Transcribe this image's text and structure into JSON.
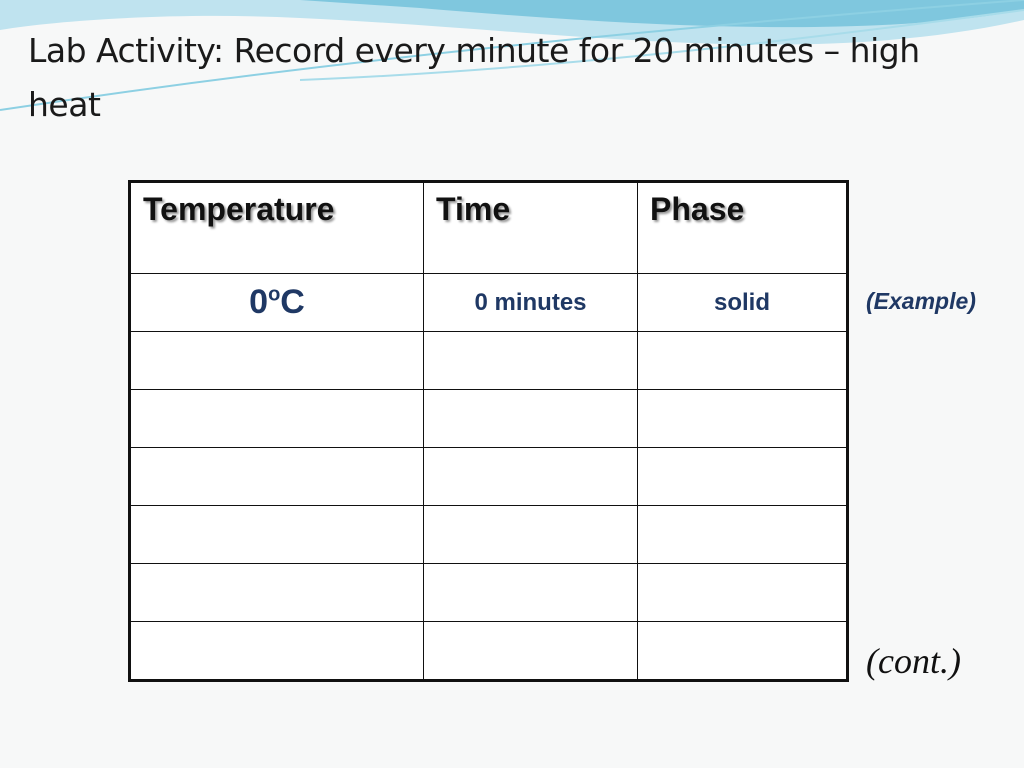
{
  "title": "Lab Activity: Record every minute for 20 minutes – high heat",
  "table": {
    "header": [
      "Temperature",
      "Time",
      "Phase"
    ],
    "rows": [
      [
        [
          "0",
          "o",
          "C"
        ],
        "0 minutes",
        "solid"
      ]
    ]
  },
  "notes": {
    "example": "(Example)",
    "cont": "(cont.)"
  }
}
